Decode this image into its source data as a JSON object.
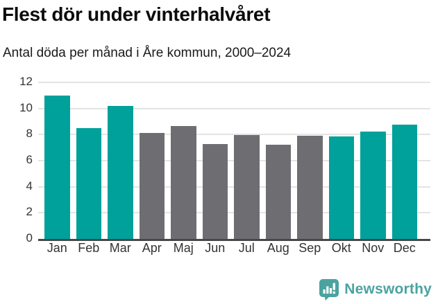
{
  "chart_data": {
    "type": "bar",
    "title": "Flest dör under vinterhalvåret",
    "subtitle": "Antal döda per månad i Åre kommun, 2000–2024",
    "categories": [
      "Jan",
      "Feb",
      "Mar",
      "Apr",
      "Maj",
      "Jun",
      "Jul",
      "Aug",
      "Sep",
      "Okt",
      "Nov",
      "Dec"
    ],
    "values": [
      11.0,
      8.5,
      10.2,
      8.1,
      8.65,
      7.3,
      7.95,
      7.2,
      7.9,
      7.85,
      8.25,
      8.75
    ],
    "bar_colors": [
      "#00a19a",
      "#00a19a",
      "#00a19a",
      "#6e6e72",
      "#6e6e72",
      "#6e6e72",
      "#6e6e72",
      "#6e6e72",
      "#6e6e72",
      "#00a19a",
      "#00a19a",
      "#00a19a"
    ],
    "xlabel": "",
    "ylabel": "",
    "ylim": [
      0,
      12
    ],
    "yticks": [
      0,
      2,
      4,
      6,
      8,
      10,
      12
    ],
    "grid": "horizontal",
    "legend_position": "none",
    "highlight_color": "#00a19a",
    "muted_color": "#6e6e72",
    "gridline_color": "#e4e4e4",
    "axis_line_color": "#47474b"
  },
  "footer": {
    "brand": "Newsworthy",
    "brand_color": "#4ba3a0",
    "logo_icon": "newsworthy-speech-bubble-chart-icon"
  }
}
